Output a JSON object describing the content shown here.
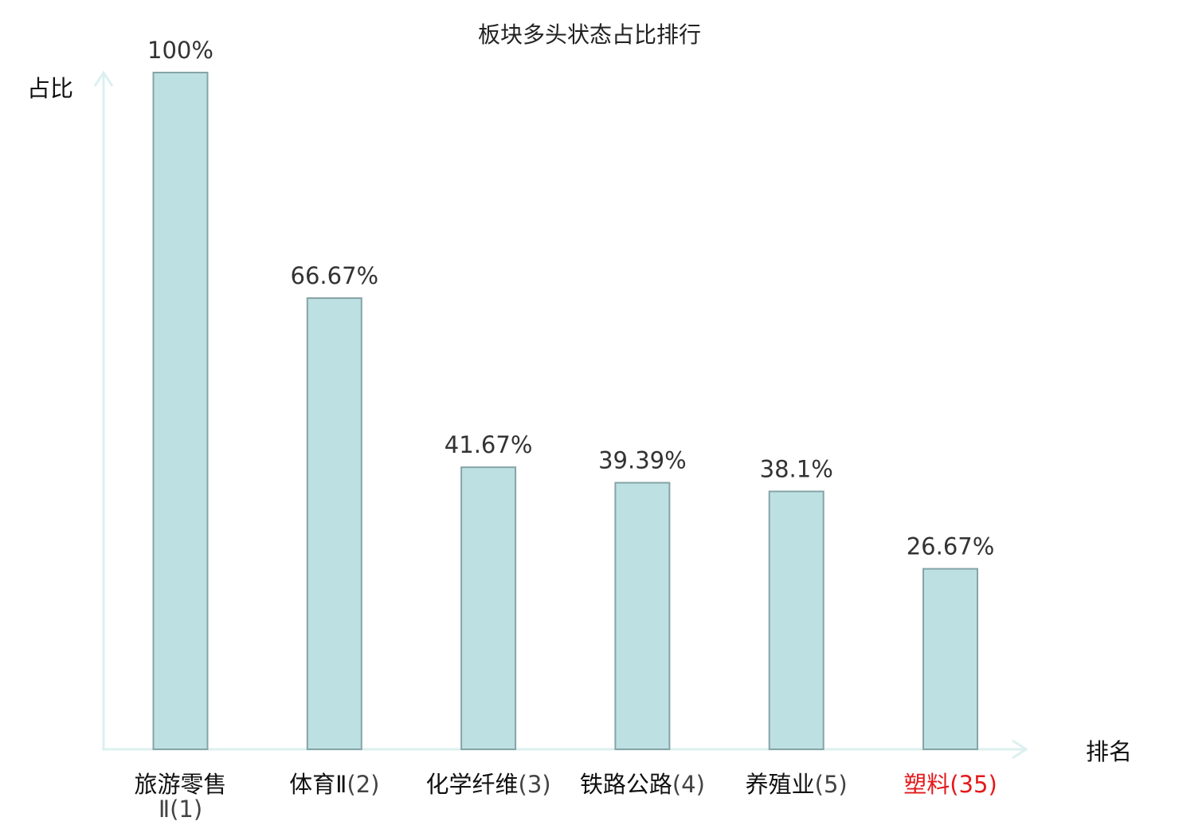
{
  "chart_data": {
    "type": "bar",
    "title": "板块多头状态占比排行",
    "ylabel": "占比",
    "xlabel": "排名",
    "ylim": [
      0,
      100
    ],
    "categories": [
      {
        "name": "旅游零售Ⅱ",
        "rank": "(1)",
        "highlight": false
      },
      {
        "name": "体育Ⅱ",
        "rank": "(2)",
        "highlight": false
      },
      {
        "name": "化学纤维",
        "rank": "(3)",
        "highlight": false
      },
      {
        "name": "铁路公路",
        "rank": "(4)",
        "highlight": false
      },
      {
        "name": "养殖业",
        "rank": "(5)",
        "highlight": false
      },
      {
        "name": "塑料",
        "rank": "(35)",
        "highlight": true
      }
    ],
    "values": [
      100,
      66.67,
      41.67,
      39.39,
      38.1,
      26.67
    ],
    "value_labels": [
      "100%",
      "66.67%",
      "41.67%",
      "39.39%",
      "38.1%",
      "26.67%"
    ],
    "grid": false,
    "legend": "none"
  },
  "colors": {
    "bar_fill": "#bde0e2",
    "bar_stroke": "#86a4a7",
    "axis": "#dcf0ef",
    "highlight": "#e31a1c"
  }
}
